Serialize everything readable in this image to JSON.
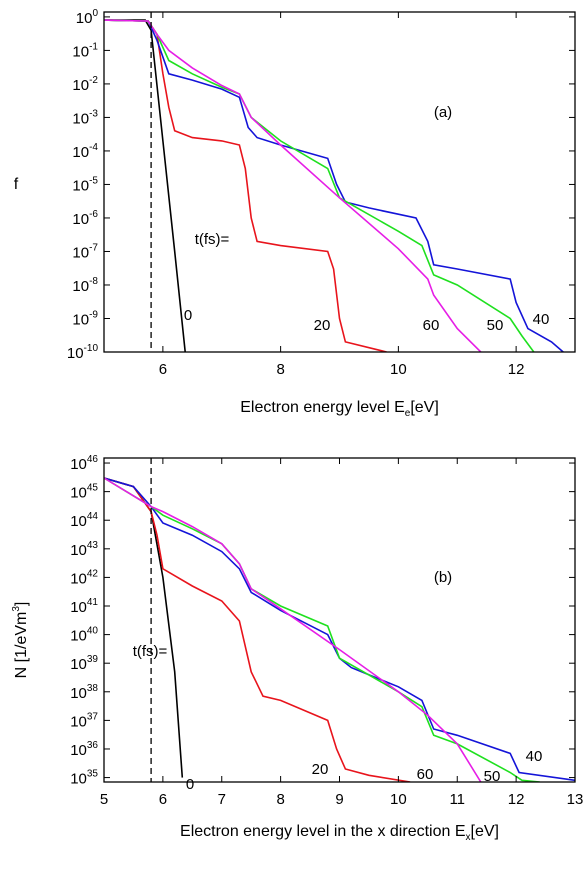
{
  "chart_data": [
    {
      "type": "line",
      "panel": "(a)",
      "xlabel": [
        "Electron energy level E",
        "e",
        "[eV]"
      ],
      "ylabel": "f",
      "xlim": [
        5,
        13
      ],
      "ylim": [
        1e-10,
        1.4
      ],
      "log_y": true,
      "xticks": [
        6,
        8,
        10,
        12
      ],
      "yticks": [
        {
          "value": 1,
          "label": [
            "10",
            "0"
          ]
        },
        {
          "value": 0.1,
          "label": [
            "10",
            "-1"
          ]
        },
        {
          "value": 0.01,
          "label": [
            "10",
            "-2"
          ]
        },
        {
          "value": 0.001,
          "label": [
            "10",
            "-3"
          ]
        },
        {
          "value": 0.0001,
          "label": [
            "10",
            "-4"
          ]
        },
        {
          "value": 1e-05,
          "label": [
            "10",
            "-5"
          ]
        },
        {
          "value": 1e-06,
          "label": [
            "10",
            "-6"
          ]
        },
        {
          "value": 1e-07,
          "label": [
            "10",
            "-7"
          ]
        },
        {
          "value": 1e-08,
          "label": [
            "10",
            "-8"
          ]
        },
        {
          "value": 1e-09,
          "label": [
            "10",
            "-9"
          ]
        },
        {
          "value": 1e-10,
          "label": [
            "10",
            "-10"
          ]
        }
      ],
      "vline": 5.8,
      "annotation": "t(fs)=",
      "series": [
        {
          "name": "0",
          "color": "#000000",
          "x": [
            5,
            5.7,
            5.8,
            6.0,
            6.2,
            6.38
          ],
          "values": [
            0.8,
            0.8,
            0.4,
            0.0002,
            1e-07,
            1e-10
          ]
        },
        {
          "name": "20",
          "color": "#e8141c",
          "x": [
            5,
            5.75,
            5.9,
            6.0,
            6.1,
            6.2,
            6.5,
            7.0,
            7.3,
            7.4,
            7.5,
            7.6,
            8.0,
            8.8,
            8.9,
            9.0,
            9.1,
            9.8
          ],
          "values": [
            0.8,
            0.75,
            0.3,
            0.02,
            0.002,
            0.0004,
            0.00025,
            0.0002,
            0.00015,
            3e-05,
            1e-06,
            2e-07,
            1.5e-07,
            1e-07,
            3e-08,
            1e-09,
            2e-10,
            1e-10
          ]
        },
        {
          "name": "40",
          "color": "#1414d8",
          "x": [
            5,
            5.75,
            5.9,
            6.1,
            6.5,
            7.0,
            7.3,
            7.45,
            7.6,
            8.0,
            8.8,
            8.95,
            9.1,
            9.5,
            10.3,
            10.5,
            10.6,
            11.0,
            11.9,
            12.0,
            12.2,
            12.6,
            12.8
          ],
          "values": [
            0.8,
            0.75,
            0.2,
            0.02,
            0.013,
            0.007,
            0.004,
            0.0005,
            0.00025,
            0.00015,
            6e-05,
            1e-05,
            3e-06,
            2e-06,
            1e-06,
            2e-07,
            4e-08,
            3e-08,
            1.5e-08,
            3e-09,
            5e-10,
            2e-10,
            1e-10
          ]
        },
        {
          "name": "50",
          "color": "#1fe01f",
          "x": [
            5,
            5.75,
            5.9,
            6.1,
            6.5,
            7.0,
            7.3,
            7.5,
            8.0,
            8.8,
            9.0,
            9.2,
            10.0,
            10.4,
            10.6,
            11.0,
            11.9,
            12.1,
            12.3
          ],
          "values": [
            0.8,
            0.75,
            0.3,
            0.05,
            0.02,
            0.008,
            0.005,
            0.001,
            0.0002,
            3e-05,
            4e-06,
            2.5e-06,
            4e-07,
            1.5e-07,
            2e-08,
            1e-08,
            1e-09,
            3e-10,
            1e-10
          ]
        },
        {
          "name": "60",
          "color": "#e61ee6",
          "x": [
            5,
            5.75,
            5.9,
            6.1,
            6.5,
            7.0,
            7.3,
            7.5,
            8.0,
            9.0,
            10.0,
            10.5,
            10.6,
            11.0,
            11.4
          ],
          "values": [
            0.8,
            0.75,
            0.3,
            0.1,
            0.03,
            0.009,
            0.005,
            0.001,
            0.00015,
            4e-06,
            1.2e-07,
            1.5e-08,
            5e-09,
            5e-10,
            1e-10
          ]
        }
      ]
    },
    {
      "type": "line",
      "panel": "(b)",
      "xlabel": [
        "Electron energy level in the x direction E",
        "x",
        "[eV]"
      ],
      "ylabel": [
        "N [1/eVm",
        "3",
        "]"
      ],
      "xlim": [
        5,
        13
      ],
      "ylim": [
        7e+34,
        1.5e+46
      ],
      "log_y": true,
      "xticks": [
        5,
        6,
        7,
        8,
        9,
        10,
        11,
        12,
        13
      ],
      "yticks": [
        {
          "value": 1e+35,
          "label": [
            "10",
            "35"
          ]
        },
        {
          "value": 1e+36,
          "label": [
            "10",
            "36"
          ]
        },
        {
          "value": 1e+37,
          "label": [
            "10",
            "37"
          ]
        },
        {
          "value": 1e+38,
          "label": [
            "10",
            "38"
          ]
        },
        {
          "value": 1e+39,
          "label": [
            "10",
            "39"
          ]
        },
        {
          "value": 1e+40,
          "label": [
            "10",
            "40"
          ]
        },
        {
          "value": 1e+41,
          "label": [
            "10",
            "41"
          ]
        },
        {
          "value": 1e+42,
          "label": [
            "10",
            "42"
          ]
        },
        {
          "value": 1e+43,
          "label": [
            "10",
            "43"
          ]
        },
        {
          "value": 1e+44,
          "label": [
            "10",
            "44"
          ]
        },
        {
          "value": 1e+45,
          "label": [
            "10",
            "45"
          ]
        },
        {
          "value": 1e+46,
          "label": [
            "10",
            "46"
          ]
        }
      ],
      "vline": 5.8,
      "annotation": "t(fs)=",
      "series": [
        {
          "name": "0",
          "color": "#000000",
          "x": [
            5,
            5.5,
            5.8,
            6.0,
            6.2,
            6.33
          ],
          "values": [
            3e+45,
            1.5e+45,
            2e+44,
            1e+42,
            5e+38,
            1e+35
          ]
        },
        {
          "name": "20",
          "color": "#e8141c",
          "x": [
            5,
            5.5,
            5.8,
            5.9,
            6.0,
            6.5,
            7.0,
            7.3,
            7.5,
            7.7,
            8.0,
            8.8,
            8.95,
            9.1,
            9.5,
            10.2
          ],
          "values": [
            3e+45,
            1.5e+45,
            2e+44,
            3e+43,
            2e+42,
            5e+41,
            1.5e+41,
            3e+40,
            5e+38,
            7e+37,
            5e+37,
            1e+37,
            1e+36,
            2e+35,
            1.2e+35,
            7e+34
          ]
        },
        {
          "name": "40",
          "color": "#1414d8",
          "x": [
            5,
            5.5,
            5.8,
            6.0,
            6.5,
            7.0,
            7.3,
            7.5,
            8.0,
            8.8,
            9.0,
            9.2,
            10.0,
            10.4,
            10.6,
            11.0,
            11.9,
            12.05,
            13
          ],
          "values": [
            3e+45,
            1.5e+45,
            3e+44,
            8e+43,
            3e+43,
            8e+42,
            2e+42,
            3e+41,
            7e+40,
            1e+40,
            1.5e+39,
            7e+38,
            1.5e+38,
            5e+37,
            5e+36,
            3e+36,
            7e+35,
            1.5e+35,
            8e+34
          ]
        },
        {
          "name": "50",
          "color": "#1fe01f",
          "x": [
            5,
            5.8,
            6.0,
            6.5,
            7.0,
            7.3,
            7.5,
            8.0,
            8.8,
            9.0,
            10.0,
            10.4,
            10.6,
            11.0,
            11.9,
            12.1,
            12.4
          ],
          "values": [
            3e+45,
            3e+44,
            1.5e+44,
            5e+43,
            1.5e+43,
            3e+42,
            4e+41,
            1e+41,
            2e+40,
            1.5e+39,
            1e+38,
            3e+37,
            3e+36,
            1.5e+36,
            1.5e+35,
            8e+34,
            7e+34
          ]
        },
        {
          "name": "60",
          "color": "#e61ee6",
          "x": [
            5,
            5.8,
            6.0,
            6.5,
            7.0,
            7.3,
            7.5,
            8.0,
            9.0,
            10.0,
            10.5,
            11.0,
            11.4
          ],
          "values": [
            3e+45,
            3e+44,
            2e+44,
            6e+43,
            1.5e+43,
            3e+42,
            4e+41,
            8e+40,
            3e+39,
            1e+38,
            1.5e+37,
            1.5e+36,
            7e+34
          ]
        }
      ]
    }
  ]
}
